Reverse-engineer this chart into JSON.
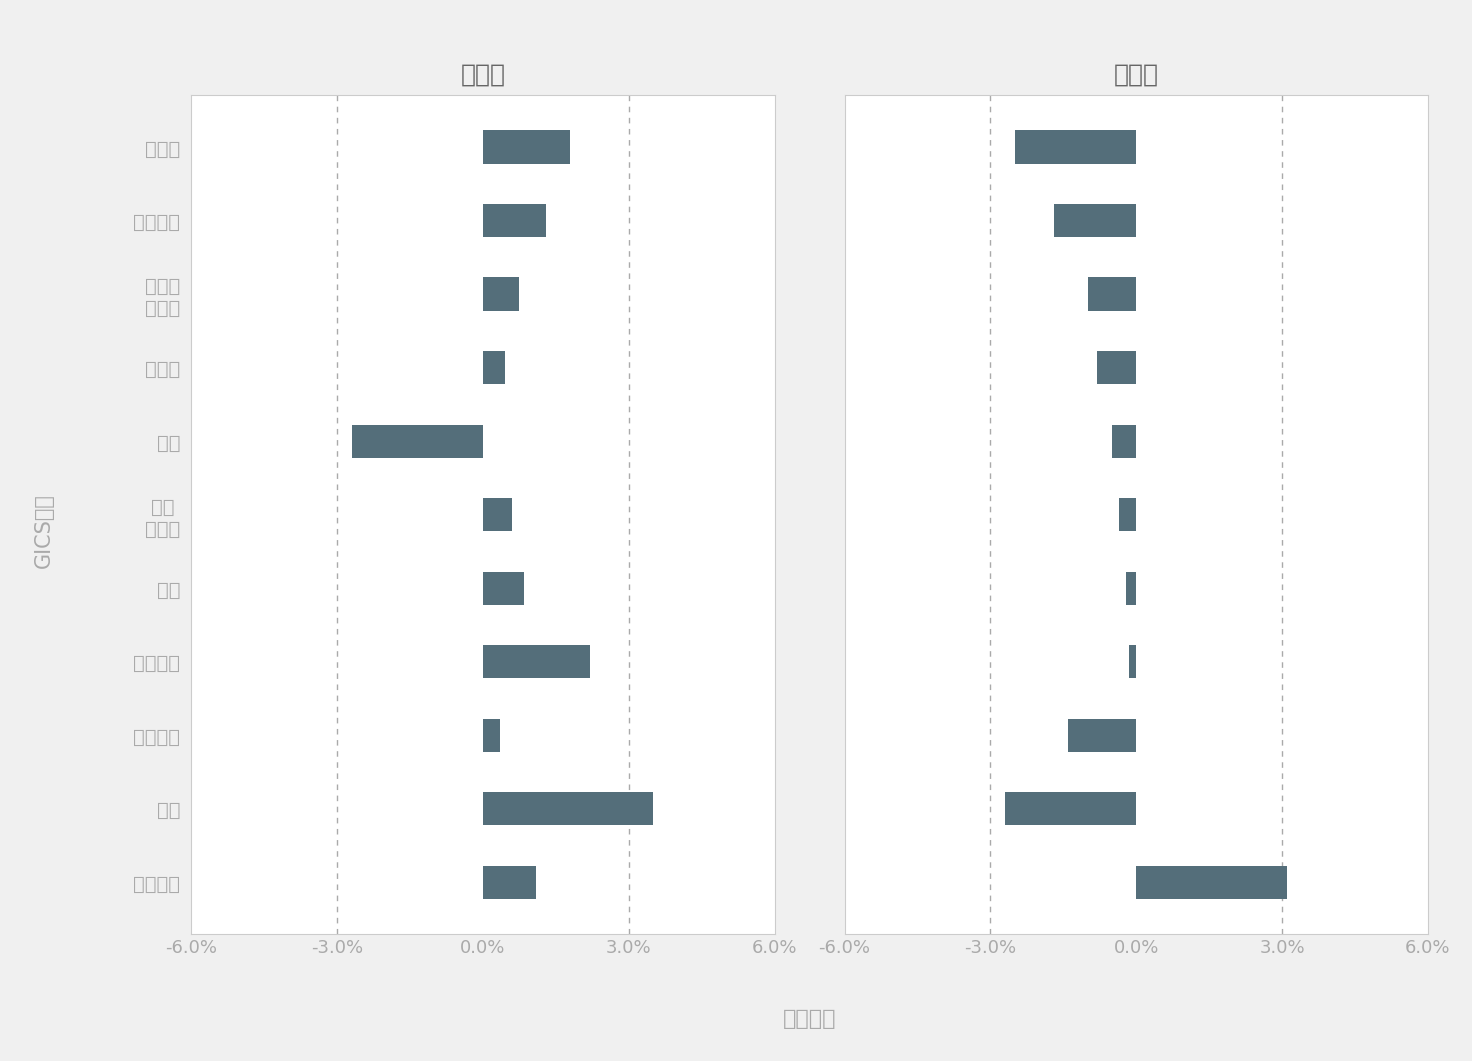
{
  "categories": [
    "原材料",
    "公用事業",
    "非必須\n消費品",
    "房地產",
    "能源",
    "必須\n消費品",
    "工業",
    "醫療保健",
    "資訊科技",
    "金融",
    "通訊服務"
  ],
  "exclusion": [
    1.8,
    1.3,
    0.75,
    0.45,
    -2.7,
    0.6,
    0.85,
    2.2,
    0.35,
    3.5,
    1.1
  ],
  "quantitative": [
    -2.5,
    -1.7,
    -1.0,
    -0.8,
    -0.5,
    -0.35,
    -0.2,
    -0.15,
    -1.4,
    -2.7,
    3.1
  ],
  "bar_color": "#546e7a",
  "title_exclusion": "剔除法",
  "title_quantitative": "量化法",
  "xlabel": "積極權重",
  "ylabel": "GICS行業",
  "xlim": [
    -6.0,
    6.0
  ],
  "xticks": [
    -6.0,
    -3.0,
    0.0,
    3.0,
    6.0
  ],
  "xtick_labels": [
    "-6.0%",
    "-3.0%",
    "0.0%",
    "3.0%",
    "6.0%"
  ],
  "dashed_lines": [
    -3.0,
    3.0
  ],
  "background_color": "#f0f0f0",
  "panel_color": "#ffffff",
  "title_fontsize": 18,
  "label_fontsize": 14,
  "tick_fontsize": 13,
  "ylabel_fontsize": 14,
  "bar_height": 0.45
}
